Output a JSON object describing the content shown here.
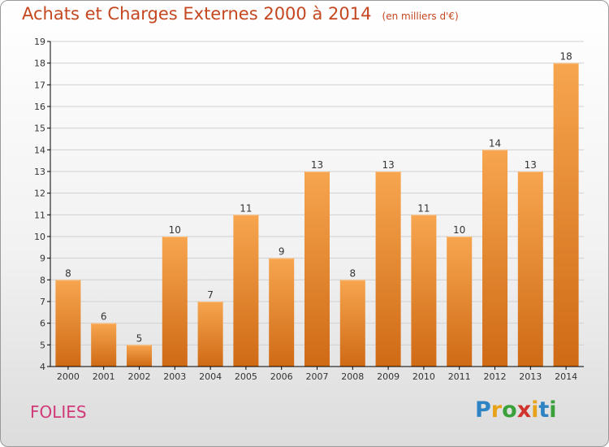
{
  "title": "Achats et Charges Externes 2000 à 2014",
  "unit_note": "(en milliers d'€)",
  "commune": "FOLIES",
  "brand": {
    "text": "Proxiti",
    "letter_colors": [
      "#2e83c4",
      "#e8a21a",
      "#3aa03a",
      "#d0342c",
      "#e8a21a",
      "#2e83c4",
      "#3aa03a"
    ]
  },
  "colors": {
    "bar_light": "#f7a54f",
    "bar_dark": "#cf6a15",
    "grid": "#d0d0d0",
    "axis": "#000000"
  },
  "chart_data": {
    "type": "bar",
    "categories": [
      "2000",
      "2001",
      "2002",
      "2003",
      "2004",
      "2005",
      "2006",
      "2007",
      "2008",
      "2009",
      "2010",
      "2011",
      "2012",
      "2013",
      "2014"
    ],
    "values": [
      8,
      6,
      5,
      10,
      7,
      11,
      9,
      13,
      8,
      13,
      11,
      10,
      14,
      13,
      18
    ],
    "ylim": [
      4,
      19
    ],
    "yticks": [
      4,
      5,
      6,
      7,
      8,
      9,
      10,
      11,
      12,
      13,
      14,
      15,
      16,
      17,
      18,
      19
    ],
    "grid": true,
    "data_labels": true
  }
}
